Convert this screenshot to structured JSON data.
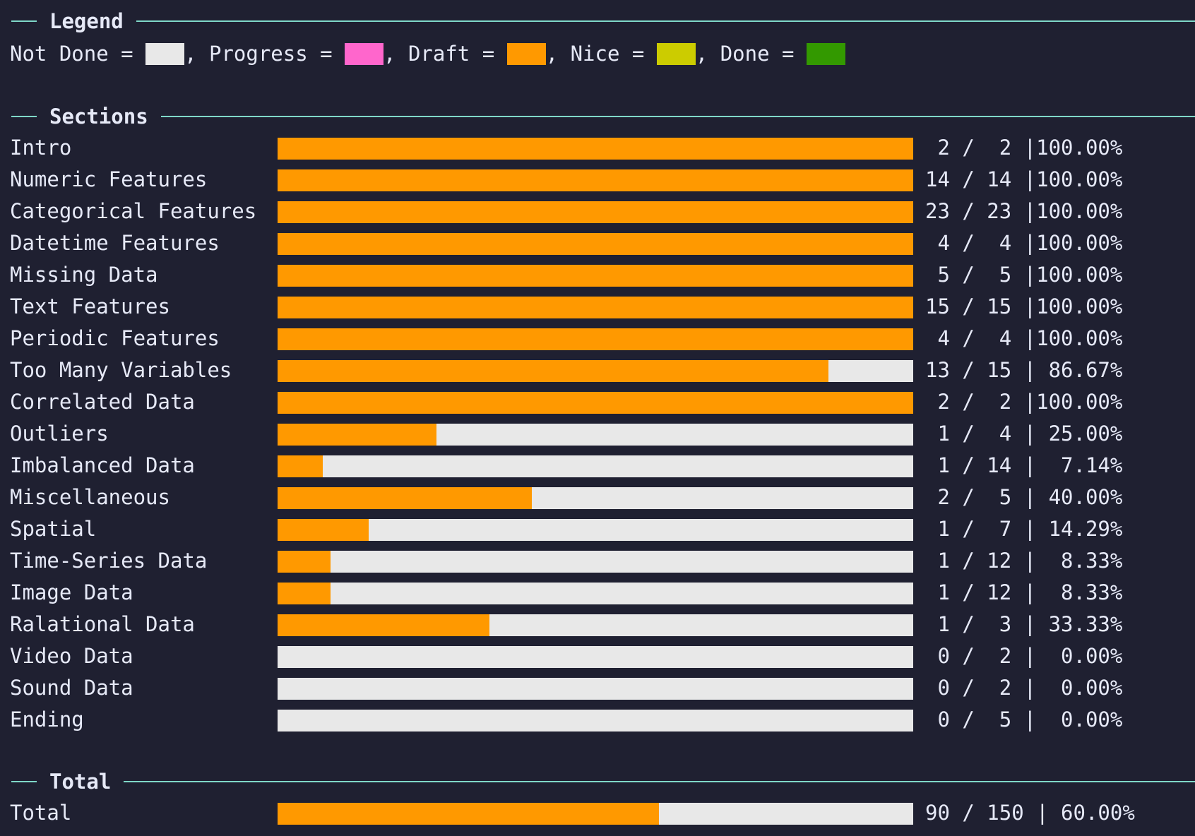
{
  "colors": {
    "not_done": "#e8e8e8",
    "progress": "#ff66cc",
    "draft": "#ff9900",
    "nice": "#cccc00",
    "done": "#339900"
  },
  "legend": {
    "heading": "Legend",
    "items": [
      {
        "label": "Not Done = ",
        "color_key": "not_done"
      },
      {
        "label": ", Progress = ",
        "color_key": "progress"
      },
      {
        "label": ", Draft = ",
        "color_key": "draft"
      },
      {
        "label": ", Nice = ",
        "color_key": "nice"
      },
      {
        "label": ", Done = ",
        "color_key": "done"
      }
    ]
  },
  "sections": {
    "heading": "Sections",
    "rows": [
      {
        "label": "Intro",
        "done": 2,
        "total": 2,
        "fraction": 1.0,
        "stats": " 2 /  2 |100.00%"
      },
      {
        "label": "Numeric Features",
        "done": 14,
        "total": 14,
        "fraction": 1.0,
        "stats": "14 / 14 |100.00%"
      },
      {
        "label": "Categorical Features",
        "done": 23,
        "total": 23,
        "fraction": 1.0,
        "stats": "23 / 23 |100.00%"
      },
      {
        "label": "Datetime Features",
        "done": 4,
        "total": 4,
        "fraction": 1.0,
        "stats": " 4 /  4 |100.00%"
      },
      {
        "label": "Missing Data",
        "done": 5,
        "total": 5,
        "fraction": 1.0,
        "stats": " 5 /  5 |100.00%"
      },
      {
        "label": "Text Features",
        "done": 15,
        "total": 15,
        "fraction": 1.0,
        "stats": "15 / 15 |100.00%"
      },
      {
        "label": "Periodic Features",
        "done": 4,
        "total": 4,
        "fraction": 1.0,
        "stats": " 4 /  4 |100.00%"
      },
      {
        "label": "Too Many Variables",
        "done": 13,
        "total": 15,
        "fraction": 0.8667,
        "stats": "13 / 15 | 86.67%"
      },
      {
        "label": "Correlated Data",
        "done": 2,
        "total": 2,
        "fraction": 1.0,
        "stats": " 2 /  2 |100.00%"
      },
      {
        "label": "Outliers",
        "done": 1,
        "total": 4,
        "fraction": 0.25,
        "stats": " 1 /  4 | 25.00%"
      },
      {
        "label": "Imbalanced Data",
        "done": 1,
        "total": 14,
        "fraction": 0.0714,
        "stats": " 1 / 14 |  7.14%"
      },
      {
        "label": "Miscellaneous",
        "done": 2,
        "total": 5,
        "fraction": 0.4,
        "stats": " 2 /  5 | 40.00%"
      },
      {
        "label": "Spatial",
        "done": 1,
        "total": 7,
        "fraction": 0.1429,
        "stats": " 1 /  7 | 14.29%"
      },
      {
        "label": "Time-Series Data",
        "done": 1,
        "total": 12,
        "fraction": 0.0833,
        "stats": " 1 / 12 |  8.33%"
      },
      {
        "label": "Image Data",
        "done": 1,
        "total": 12,
        "fraction": 0.0833,
        "stats": " 1 / 12 |  8.33%"
      },
      {
        "label": "Ralational Data",
        "done": 1,
        "total": 3,
        "fraction": 0.3333,
        "stats": " 1 /  3 | 33.33%"
      },
      {
        "label": "Video Data",
        "done": 0,
        "total": 2,
        "fraction": 0.0,
        "stats": " 0 /  2 |  0.00%"
      },
      {
        "label": "Sound Data",
        "done": 0,
        "total": 2,
        "fraction": 0.0,
        "stats": " 0 /  2 |  0.00%"
      },
      {
        "label": "Ending",
        "done": 0,
        "total": 5,
        "fraction": 0.0,
        "stats": " 0 /  5 |  0.00%"
      }
    ]
  },
  "total": {
    "heading": "Total",
    "label": "Total",
    "done": 90,
    "total": 150,
    "fraction": 0.6,
    "stats": "90 / 150 | 60.00%"
  }
}
